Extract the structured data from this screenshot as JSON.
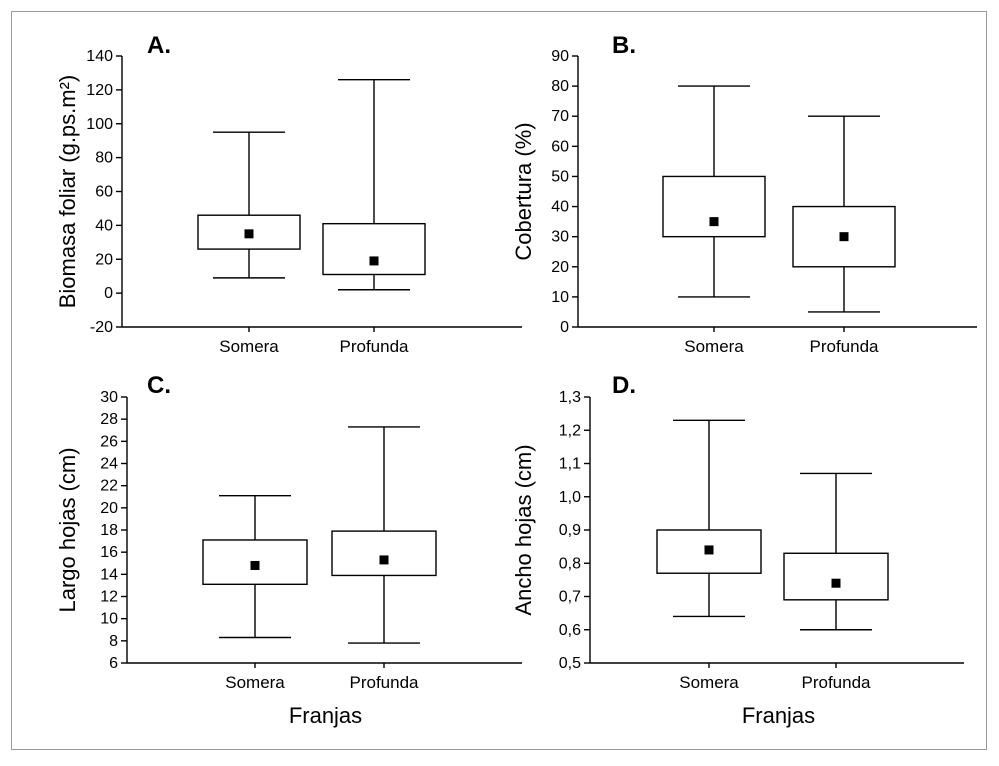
{
  "chart_data": [
    {
      "type": "box",
      "panel_label": "A.",
      "ylabel": "Biomasa foliar (g.ps.m²)",
      "xlabel": "",
      "ylim": [
        -20,
        140
      ],
      "yticks": [
        -20,
        0,
        20,
        40,
        60,
        80,
        100,
        120,
        140
      ],
      "categories": [
        "Somera",
        "Profunda"
      ],
      "boxes": [
        {
          "category": "Somera",
          "whisker_low": 9,
          "q1": 26,
          "median": 35,
          "q3": 46,
          "whisker_high": 95
        },
        {
          "category": "Profunda",
          "whisker_low": 2,
          "q1": 11,
          "median": 19,
          "q3": 41,
          "whisker_high": 126
        }
      ]
    },
    {
      "type": "box",
      "panel_label": "B.",
      "ylabel": "Cobertura (%)",
      "xlabel": "",
      "ylim": [
        0,
        90
      ],
      "yticks": [
        0,
        10,
        20,
        30,
        40,
        50,
        60,
        70,
        80,
        90
      ],
      "categories": [
        "Somera",
        "Profunda"
      ],
      "boxes": [
        {
          "category": "Somera",
          "whisker_low": 10,
          "q1": 30,
          "median": 35,
          "q3": 50,
          "whisker_high": 80
        },
        {
          "category": "Profunda",
          "whisker_low": 5,
          "q1": 20,
          "median": 30,
          "q3": 40,
          "whisker_high": 70
        }
      ]
    },
    {
      "type": "box",
      "panel_label": "C.",
      "ylabel": "Largo hojas (cm)",
      "xlabel": "Franjas",
      "ylim": [
        6,
        30
      ],
      "yticks": [
        6,
        8,
        10,
        12,
        14,
        16,
        18,
        20,
        22,
        24,
        26,
        28,
        30
      ],
      "categories": [
        "Somera",
        "Profunda"
      ],
      "boxes": [
        {
          "category": "Somera",
          "whisker_low": 8.3,
          "q1": 13.1,
          "median": 14.8,
          "q3": 17.1,
          "whisker_high": 21.1
        },
        {
          "category": "Profunda",
          "whisker_low": 7.8,
          "q1": 13.9,
          "median": 15.3,
          "q3": 17.9,
          "whisker_high": 27.3
        }
      ]
    },
    {
      "type": "box",
      "panel_label": "D.",
      "ylabel": "Ancho hojas (cm)",
      "xlabel": "Franjas",
      "ylim": [
        0.5,
        1.3
      ],
      "yticks": [
        "0,5",
        "0,6",
        "0,7",
        "0,8",
        "0,9",
        "1,0",
        "1,1",
        "1,2",
        "1,3"
      ],
      "categories": [
        "Somera",
        "Profunda"
      ],
      "boxes": [
        {
          "category": "Somera",
          "whisker_low": 0.64,
          "q1": 0.77,
          "median": 0.84,
          "q3": 0.9,
          "whisker_high": 1.23
        },
        {
          "category": "Profunda",
          "whisker_low": 0.6,
          "q1": 0.69,
          "median": 0.74,
          "q3": 0.83,
          "whisker_high": 1.07
        }
      ]
    }
  ]
}
